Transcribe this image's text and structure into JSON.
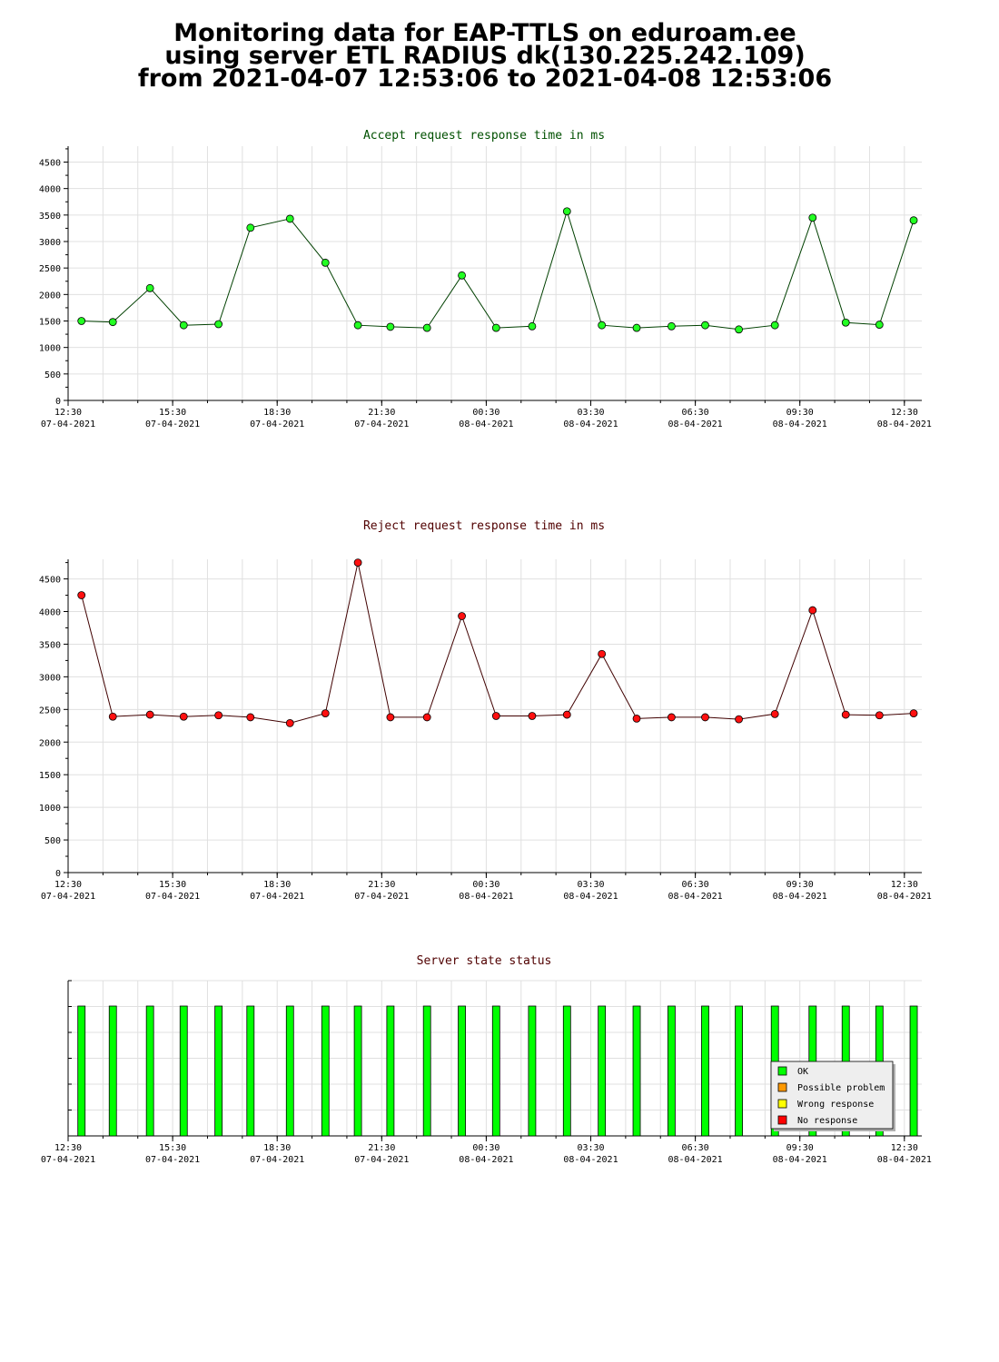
{
  "header": {
    "line1": "Monitoring data for EAP-TTLS on eduroam.ee",
    "line2": "using server ETL RADIUS dk(130.225.242.109)",
    "line3": "from 2021-04-07 12:53:06 to 2021-04-08 12:53:06"
  },
  "x_axis": {
    "ticks": [
      {
        "time": "12:30",
        "date": "07-04-2021"
      },
      {
        "time": "15:30",
        "date": "07-04-2021"
      },
      {
        "time": "18:30",
        "date": "07-04-2021"
      },
      {
        "time": "21:30",
        "date": "07-04-2021"
      },
      {
        "time": "00:30",
        "date": "08-04-2021"
      },
      {
        "time": "03:30",
        "date": "08-04-2021"
      },
      {
        "time": "06:30",
        "date": "08-04-2021"
      },
      {
        "time": "09:30",
        "date": "08-04-2021"
      },
      {
        "time": "12:30",
        "date": "08-04-2021"
      }
    ]
  },
  "chart_data": [
    {
      "type": "line",
      "title": "Accept request response time in ms",
      "title_color": "#005000",
      "line_color": "#004000",
      "marker_color": "#22ff22",
      "ylim": [
        0,
        4800
      ],
      "yticks": [
        0,
        500,
        1000,
        1500,
        2000,
        2500,
        3000,
        3500,
        4000,
        4500
      ],
      "x_time": [
        "2021-04-07 12:53",
        "2021-04-07 13:47",
        "2021-04-07 14:51",
        "2021-04-07 15:49",
        "2021-04-07 16:49",
        "2021-04-07 17:44",
        "2021-04-07 18:52",
        "2021-04-07 19:53",
        "2021-04-07 20:49",
        "2021-04-07 21:45",
        "2021-04-07 22:48",
        "2021-04-07 23:48",
        "2021-04-08 00:47",
        "2021-04-08 01:49",
        "2021-04-08 02:49",
        "2021-04-08 03:49",
        "2021-04-08 04:49",
        "2021-04-08 05:49",
        "2021-04-08 06:47",
        "2021-04-08 07:45",
        "2021-04-08 08:47",
        "2021-04-08 09:52",
        "2021-04-08 10:49",
        "2021-04-08 11:47",
        "2021-04-08 12:46"
      ],
      "values": [
        1500,
        1480,
        2120,
        1420,
        1440,
        3260,
        3430,
        2600,
        1420,
        1390,
        1370,
        2360,
        1370,
        1400,
        3570,
        1420,
        1370,
        1400,
        1420,
        1340,
        1420,
        3450,
        1470,
        1430,
        3400
      ]
    },
    {
      "type": "line",
      "title": "Reject request response time in ms",
      "title_color": "#500000",
      "line_color": "#400000",
      "marker_color": "#ff1010",
      "ylim": [
        0,
        4800
      ],
      "yticks": [
        0,
        500,
        1000,
        1500,
        2000,
        2500,
        3000,
        3500,
        4000,
        4500
      ],
      "x_time": [
        "2021-04-07 12:53",
        "2021-04-07 13:47",
        "2021-04-07 14:51",
        "2021-04-07 15:49",
        "2021-04-07 16:49",
        "2021-04-07 17:44",
        "2021-04-07 18:52",
        "2021-04-07 19:53",
        "2021-04-07 20:49",
        "2021-04-07 21:45",
        "2021-04-07 22:48",
        "2021-04-07 23:48",
        "2021-04-08 00:47",
        "2021-04-08 01:49",
        "2021-04-08 02:49",
        "2021-04-08 03:49",
        "2021-04-08 04:49",
        "2021-04-08 05:49",
        "2021-04-08 06:47",
        "2021-04-08 07:45",
        "2021-04-08 08:47",
        "2021-04-08 09:52",
        "2021-04-08 10:49",
        "2021-04-08 11:47",
        "2021-04-08 12:46"
      ],
      "values": [
        4250,
        2390,
        2420,
        2390,
        2410,
        2380,
        2290,
        2440,
        4750,
        2380,
        2380,
        3930,
        2400,
        2400,
        2420,
        3350,
        2360,
        2380,
        2380,
        2350,
        2430,
        4020,
        2420,
        2410,
        2440
      ]
    },
    {
      "type": "bar",
      "title": "Server state status",
      "title_color": "#500000",
      "x_time": [
        "2021-04-07 12:53",
        "2021-04-07 13:47",
        "2021-04-07 14:51",
        "2021-04-07 15:49",
        "2021-04-07 16:49",
        "2021-04-07 17:44",
        "2021-04-07 18:52",
        "2021-04-07 19:53",
        "2021-04-07 20:49",
        "2021-04-07 21:45",
        "2021-04-07 22:48",
        "2021-04-07 23:48",
        "2021-04-08 00:47",
        "2021-04-08 01:49",
        "2021-04-08 02:49",
        "2021-04-08 03:49",
        "2021-04-08 04:49",
        "2021-04-08 05:49",
        "2021-04-08 06:47",
        "2021-04-08 07:45",
        "2021-04-08 08:47",
        "2021-04-08 09:52",
        "2021-04-08 10:49",
        "2021-04-08 11:47",
        "2021-04-08 12:46"
      ],
      "status": [
        "OK",
        "OK",
        "OK",
        "OK",
        "OK",
        "OK",
        "OK",
        "OK",
        "OK",
        "OK",
        "OK",
        "OK",
        "OK",
        "OK",
        "OK",
        "OK",
        "OK",
        "OK",
        "OK",
        "OK",
        "OK",
        "OK",
        "OK",
        "OK",
        "OK"
      ],
      "legend": [
        {
          "label": "OK",
          "color": "#00ff00"
        },
        {
          "label": "Possible problem",
          "color": "#ff9900"
        },
        {
          "label": "Wrong response",
          "color": "#ffff00"
        },
        {
          "label": "No response",
          "color": "#ff0000"
        }
      ],
      "legend_position": "bottom-right"
    }
  ]
}
